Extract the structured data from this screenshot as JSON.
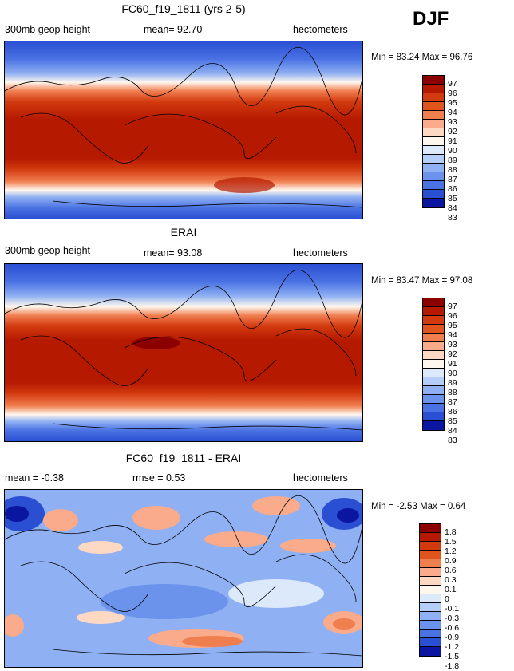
{
  "season": "DJF",
  "panels": [
    {
      "title": "FC60_f19_1811 (yrs 2-5)",
      "left_label": "300mb geop height",
      "mid_label": "mean= 92.70",
      "units": "hectometers",
      "min_max": "Min = 83.24 Max = 96.76",
      "levels": [
        "97",
        "96",
        "95",
        "94",
        "93",
        "92",
        "91",
        "90",
        "89",
        "88",
        "87",
        "86",
        "85",
        "84",
        "83"
      ],
      "colors": [
        "#8c0000",
        "#b51a00",
        "#d23a0f",
        "#e0551d",
        "#f07f50",
        "#f9ab8c",
        "#fdd8c2",
        "#fff7ee",
        "#dbe9fb",
        "#b5cef7",
        "#8fb0f2",
        "#6c93ec",
        "#4a72e3",
        "#2b4fd3",
        "#0b16a0"
      ]
    },
    {
      "title": "ERAI",
      "left_label": "300mb geop height",
      "mid_label": "mean= 93.08",
      "units": "hectometers",
      "min_max": "Min = 83.47 Max = 97.08",
      "levels": [
        "97",
        "96",
        "95",
        "94",
        "93",
        "92",
        "91",
        "90",
        "89",
        "88",
        "87",
        "86",
        "85",
        "84",
        "83"
      ],
      "colors": [
        "#8c0000",
        "#b51a00",
        "#d23a0f",
        "#e0551d",
        "#f07f50",
        "#f9ab8c",
        "#fdd8c2",
        "#fff7ee",
        "#dbe9fb",
        "#b5cef7",
        "#8fb0f2",
        "#6c93ec",
        "#4a72e3",
        "#2b4fd3",
        "#0b16a0"
      ]
    },
    {
      "title": "FC60_f19_1811 - ERAI",
      "left_label": "mean = -0.38",
      "mid_label": "rmse = 0.53",
      "units": "hectometers",
      "min_max": "Min = -2.53 Max = 0.64",
      "levels": [
        "1.8",
        "1.5",
        "1.2",
        "0.9",
        "0.6",
        "0.3",
        "0.1",
        "0",
        "-0.1",
        "-0.3",
        "-0.6",
        "-0.9",
        "-1.2",
        "-1.5",
        "-1.8"
      ],
      "colors": [
        "#8c0000",
        "#b51a00",
        "#d23a0f",
        "#e0551d",
        "#f07f50",
        "#f9ab8c",
        "#fdd8c2",
        "#fff7ee",
        "#dbe9fb",
        "#b5cef7",
        "#8fb0f2",
        "#6c93ec",
        "#4a72e3",
        "#2b4fd3",
        "#0b16a0"
      ]
    }
  ],
  "chart_data": [
    {
      "type": "heatmap",
      "title": "FC60_f19_1811 (yrs 2-5)",
      "variable": "300mb geop height",
      "units": "hectometers",
      "mean": 92.7,
      "min": 83.24,
      "max": 96.76,
      "contour_levels": [
        83,
        84,
        85,
        86,
        87,
        88,
        89,
        90,
        91,
        92,
        93,
        94,
        95,
        96,
        97
      ]
    },
    {
      "type": "heatmap",
      "title": "ERAI",
      "variable": "300mb geop height",
      "units": "hectometers",
      "mean": 93.08,
      "min": 83.47,
      "max": 97.08,
      "contour_levels": [
        83,
        84,
        85,
        86,
        87,
        88,
        89,
        90,
        91,
        92,
        93,
        94,
        95,
        96,
        97
      ]
    },
    {
      "type": "heatmap",
      "title": "FC60_f19_1811 - ERAI",
      "units": "hectometers",
      "mean": -0.38,
      "rmse": 0.53,
      "min": -2.53,
      "max": 0.64,
      "contour_levels": [
        -1.8,
        -1.5,
        -1.2,
        -0.9,
        -0.6,
        -0.3,
        -0.1,
        0,
        0.1,
        0.3,
        0.6,
        0.9,
        1.2,
        1.5,
        1.8
      ]
    }
  ]
}
